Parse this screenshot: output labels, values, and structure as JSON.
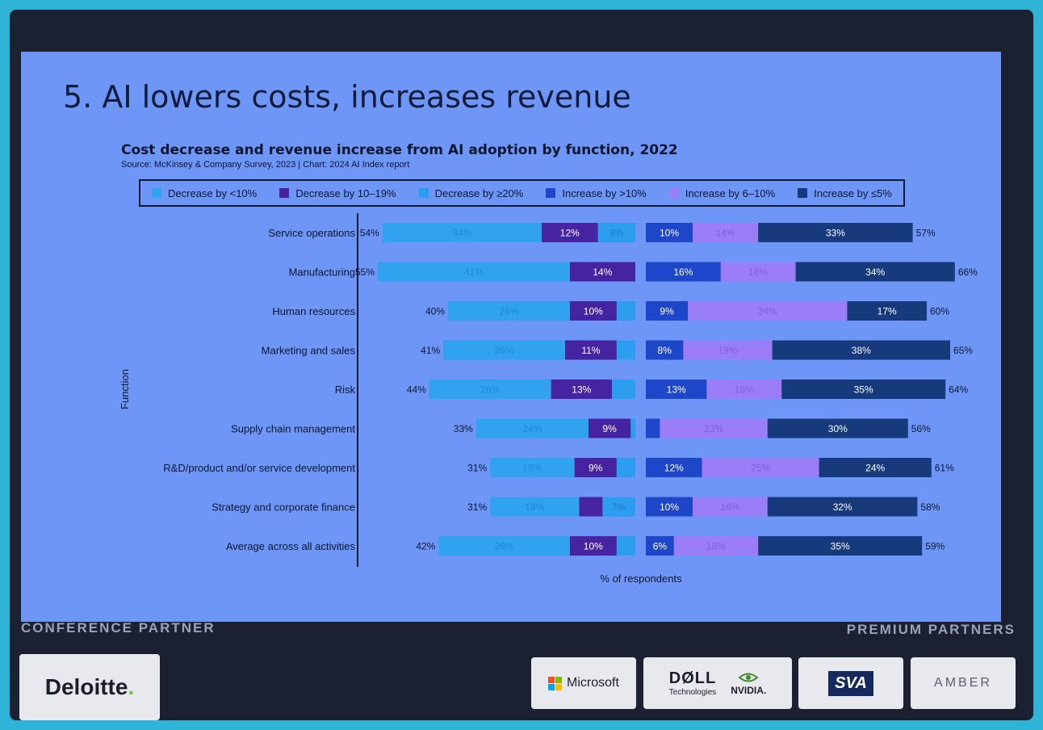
{
  "slide": {
    "title": "5. AI lowers costs, increases revenue",
    "colors": {
      "slide_bg": "#6d96f6",
      "dec_lt10": "#31a2ef",
      "dec_10_19": "#4623a0",
      "dec_ge20": "#2d9df0",
      "inc_gt10": "#1e46c8",
      "inc_6_10": "#9b7df8",
      "inc_le5": "#173a7c"
    }
  },
  "chart_data": {
    "type": "bar",
    "orientation": "horizontal",
    "stacked": true,
    "diverging": true,
    "title": "Cost decrease and revenue increase from AI adoption by function, 2022",
    "source": "Source: McKinsey & Company Survey, 2023 | Chart: 2024 AI Index report",
    "ylabel": "Function",
    "xlabel": "% of respondents",
    "legend": [
      "Decrease by <10%",
      "Decrease by 10–19%",
      "Decrease by ≥20%",
      "Increase by >10%",
      "Increase by 6–10%",
      "Increase by ≤5%"
    ],
    "categories": [
      "Service operations",
      "Manufacturing",
      "Human resources",
      "Marketing and sales",
      "Risk",
      "Supply chain management",
      "R&D/product and/or service development",
      "Strategy and corporate finance",
      "Average across all activities"
    ],
    "cost_series": [
      {
        "name": "Decrease by ≥20%",
        "values": [
          8,
          0,
          4,
          4,
          5,
          1,
          4,
          7,
          4
        ]
      },
      {
        "name": "Decrease by 10–19%",
        "values": [
          12,
          14,
          10,
          11,
          13,
          9,
          9,
          5,
          10
        ]
      },
      {
        "name": "Decrease by <10%",
        "values": [
          34,
          41,
          26,
          26,
          26,
          24,
          18,
          19,
          28
        ]
      }
    ],
    "cost_totals": [
      54,
      55,
      40,
      41,
      44,
      33,
      31,
      31,
      42
    ],
    "revenue_series": [
      {
        "name": "Increase by >10%",
        "values": [
          10,
          16,
          9,
          8,
          13,
          3,
          12,
          10,
          6
        ]
      },
      {
        "name": "Increase by 6–10%",
        "values": [
          14,
          16,
          34,
          19,
          16,
          23,
          25,
          16,
          18
        ]
      },
      {
        "name": "Increase by ≤5%",
        "values": [
          33,
          34,
          17,
          38,
          35,
          30,
          24,
          32,
          35
        ]
      }
    ],
    "revenue_totals": [
      57,
      66,
      60,
      65,
      64,
      56,
      61,
      58,
      59
    ],
    "visible_labels": {
      "cost": [
        [
          "8%",
          "12%",
          "34%"
        ],
        [
          "",
          "14%",
          "41%"
        ],
        [
          "",
          "10%",
          "26%"
        ],
        [
          "",
          "11%",
          "26%"
        ],
        [
          "",
          "13%",
          "26%"
        ],
        [
          "",
          "9%",
          "24%"
        ],
        [
          "",
          "9%",
          "18%"
        ],
        [
          "7%",
          "",
          "19%"
        ],
        [
          "",
          "10%",
          "28%"
        ]
      ],
      "revenue": [
        [
          "10%",
          "14%",
          "33%"
        ],
        [
          "16%",
          "16%",
          "34%"
        ],
        [
          "9%",
          "34%",
          "17%"
        ],
        [
          "8%",
          "19%",
          "38%"
        ],
        [
          "13%",
          "16%",
          "35%"
        ],
        [
          "",
          "23%",
          "30%"
        ],
        [
          "12%",
          "25%",
          "24%"
        ],
        [
          "10%",
          "16%",
          "32%"
        ],
        [
          "6%",
          "18%",
          "35%"
        ]
      ]
    }
  },
  "footer": {
    "conference_label": "CONFERENCE PARTNER",
    "premium_label": "PREMIUM PARTNERS",
    "deloitte": "Deloitte",
    "deloitte_dot": ".",
    "microsoft": "Microsoft",
    "dell": "DØLL",
    "dell_sub": "Technologies",
    "nvidia": "NVIDIA.",
    "sva": "SVA",
    "amber": "AMBER"
  }
}
